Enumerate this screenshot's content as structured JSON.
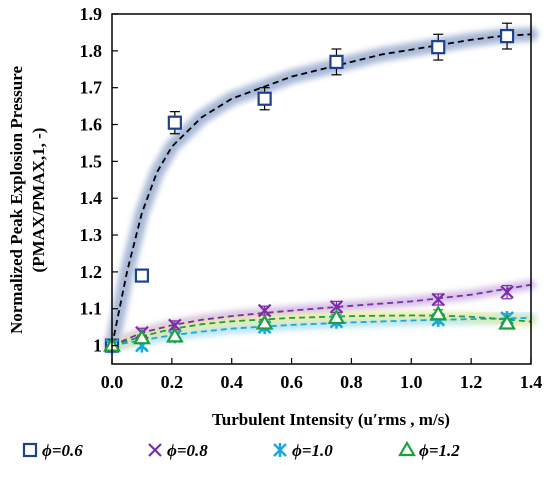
{
  "chart_data": {
    "type": "scatter",
    "xlabel": "Turbulent Intensity (u′rms , m/s)",
    "ylabel_line1": "Normalized Peak Explosion Pressure",
    "ylabel_line2": "(PMAX/PMAX,1, -)",
    "xlim": [
      0.0,
      1.4
    ],
    "ylim": [
      0.95,
      1.9
    ],
    "x_ticks": [
      "0.0",
      "0.2",
      "0.4",
      "0.6",
      "0.8",
      "1.0",
      "1.2",
      "1.4"
    ],
    "y_ticks": [
      "1",
      "1.1",
      "1.2",
      "1.3",
      "1.4",
      "1.5",
      "1.6",
      "1.7",
      "1.8",
      "1.9"
    ],
    "grid": false,
    "legend_position": "bottom",
    "series": [
      {
        "name": "ϕ=0.6",
        "marker": "square",
        "color": "#1f3f8f",
        "band_color": "#8aa0c8",
        "fit_color": "#000000",
        "x": [
          0.0,
          0.1,
          0.21,
          0.51,
          0.75,
          1.09,
          1.32
        ],
        "y": [
          1.0,
          1.19,
          1.605,
          1.67,
          1.77,
          1.81,
          1.84
        ],
        "err": [
          0,
          0.015,
          0.03,
          0.03,
          0.035,
          0.035,
          0.035
        ],
        "fit": {
          "x": [
            0.0,
            0.05,
            0.1,
            0.15,
            0.2,
            0.3,
            0.4,
            0.5,
            0.6,
            0.75,
            0.9,
            1.05,
            1.2,
            1.3,
            1.4
          ],
          "y": [
            1.0,
            1.2,
            1.36,
            1.47,
            1.54,
            1.62,
            1.67,
            1.7,
            1.73,
            1.76,
            1.79,
            1.81,
            1.83,
            1.84,
            1.845
          ]
        }
      },
      {
        "name": "ϕ=0.8",
        "marker": "x",
        "color": "#7a2fa8",
        "band_color": "#c9a8df",
        "fit_color": "#7a2fa8",
        "x": [
          0.0,
          0.1,
          0.21,
          0.51,
          0.75,
          1.09,
          1.32
        ],
        "y": [
          1.0,
          1.035,
          1.055,
          1.095,
          1.105,
          1.125,
          1.145
        ],
        "err": [
          0,
          0.012,
          0.012,
          0.012,
          0.015,
          0.015,
          0.018
        ],
        "fit": {
          "x": [
            0.0,
            0.1,
            0.2,
            0.3,
            0.4,
            0.5,
            0.6,
            0.8,
            1.0,
            1.2,
            1.4
          ],
          "y": [
            1.0,
            1.035,
            1.055,
            1.07,
            1.08,
            1.088,
            1.095,
            1.108,
            1.12,
            1.138,
            1.165
          ]
        }
      },
      {
        "name": "ϕ=1.0",
        "marker": "asterisk",
        "color": "#1aa6e0",
        "band_color": "#9fdcf2",
        "fit_color": "#1aa6e0",
        "x": [
          0.0,
          0.1,
          0.21,
          0.51,
          0.75,
          1.09,
          1.32
        ],
        "y": [
          1.0,
          1.0,
          1.025,
          1.05,
          1.065,
          1.07,
          1.075
        ],
        "err": [
          0,
          0.008,
          0.008,
          0.01,
          0.01,
          0.01,
          0.012
        ],
        "fit": {
          "x": [
            0.0,
            0.1,
            0.2,
            0.3,
            0.4,
            0.6,
            0.8,
            1.0,
            1.2,
            1.4
          ],
          "y": [
            1.0,
            1.015,
            1.028,
            1.038,
            1.046,
            1.056,
            1.063,
            1.068,
            1.072,
            1.075
          ]
        }
      },
      {
        "name": "ϕ=1.2",
        "marker": "triangle",
        "color": "#1e9e3c",
        "band_color": "#e8ec9a",
        "fit_color": "#1e9e3c",
        "x": [
          0.0,
          0.1,
          0.21,
          0.51,
          0.75,
          1.09,
          1.32
        ],
        "y": [
          1.0,
          1.02,
          1.025,
          1.06,
          1.075,
          1.085,
          1.06
        ],
        "err": [
          0,
          0.008,
          0.008,
          0.01,
          0.01,
          0.012,
          0.012
        ],
        "fit": {
          "x": [
            0.0,
            0.1,
            0.2,
            0.3,
            0.4,
            0.6,
            0.8,
            1.0,
            1.1,
            1.2,
            1.3,
            1.4
          ],
          "y": [
            1.0,
            1.025,
            1.045,
            1.058,
            1.066,
            1.075,
            1.08,
            1.082,
            1.081,
            1.078,
            1.072,
            1.065
          ]
        }
      }
    ]
  }
}
